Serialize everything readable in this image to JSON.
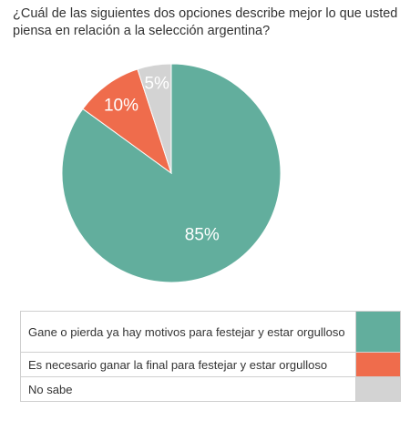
{
  "chart_data": {
    "type": "pie",
    "title": "¿Cuál de las siguientes dos opciones describe mejor lo que usted piensa en relación a la selección argentina?",
    "slices": [
      {
        "label": "Gane o pierda ya hay motivos para festejar y estar orgulloso",
        "value": 85,
        "display": "85%",
        "color": "#62ae9d"
      },
      {
        "label": "Es necesario ganar la final para festejar y estar orgulloso",
        "value": 10,
        "display": "10%",
        "color": "#ef6c4c"
      },
      {
        "label": "No sabe",
        "value": 5,
        "display": "5%",
        "color": "#d3d3d3"
      }
    ],
    "legend_position": "bottom"
  }
}
